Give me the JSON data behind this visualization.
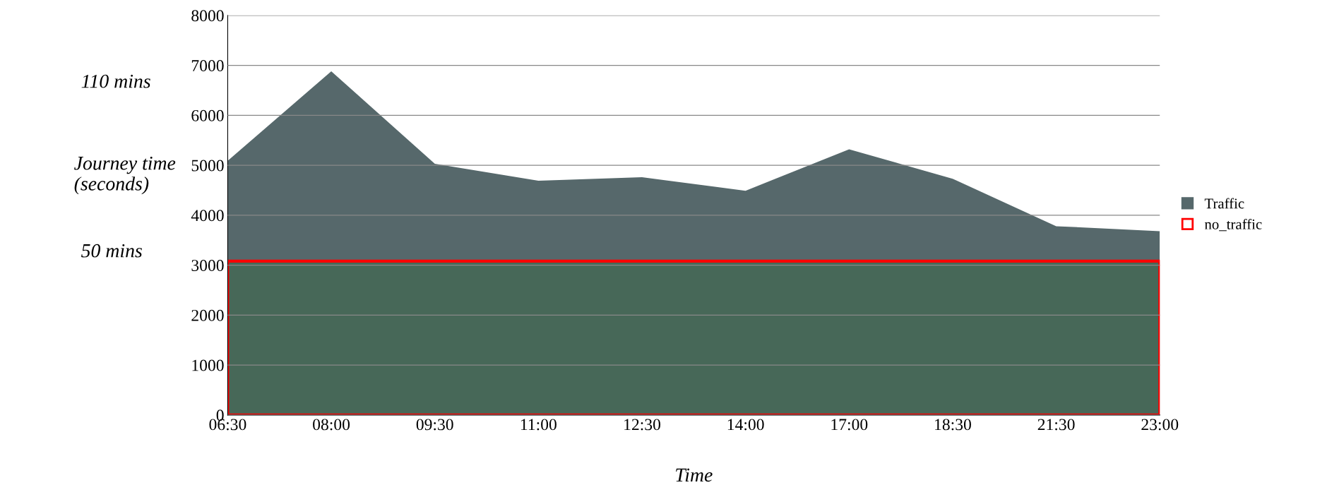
{
  "chart_data": {
    "type": "area",
    "xlabel": "Time",
    "ylabel": "Journey time\n(seconds)",
    "categories": [
      "06:30",
      "08:00",
      "09:30",
      "11:00",
      "12:30",
      "14:00",
      "17:00",
      "18:30",
      "21:30",
      "23:00"
    ],
    "series": [
      {
        "name": "Traffic",
        "color": "#56686b",
        "values": [
          5090,
          6880,
          5030,
          4690,
          4760,
          4490,
          5320,
          4730,
          3780,
          3680
        ]
      },
      {
        "name": "no_traffic",
        "color": "#ff0000",
        "values": [
          3080,
          3080,
          3080,
          3080,
          3080,
          3080,
          3080,
          3080,
          3080,
          3080
        ]
      }
    ],
    "ylim": [
      0,
      8000
    ],
    "yticks": [
      0,
      1000,
      2000,
      3000,
      4000,
      5000,
      6000,
      7000,
      8000
    ],
    "grid": "y",
    "legend": "right",
    "annotations": [
      "110 mins",
      "50 mins"
    ]
  }
}
